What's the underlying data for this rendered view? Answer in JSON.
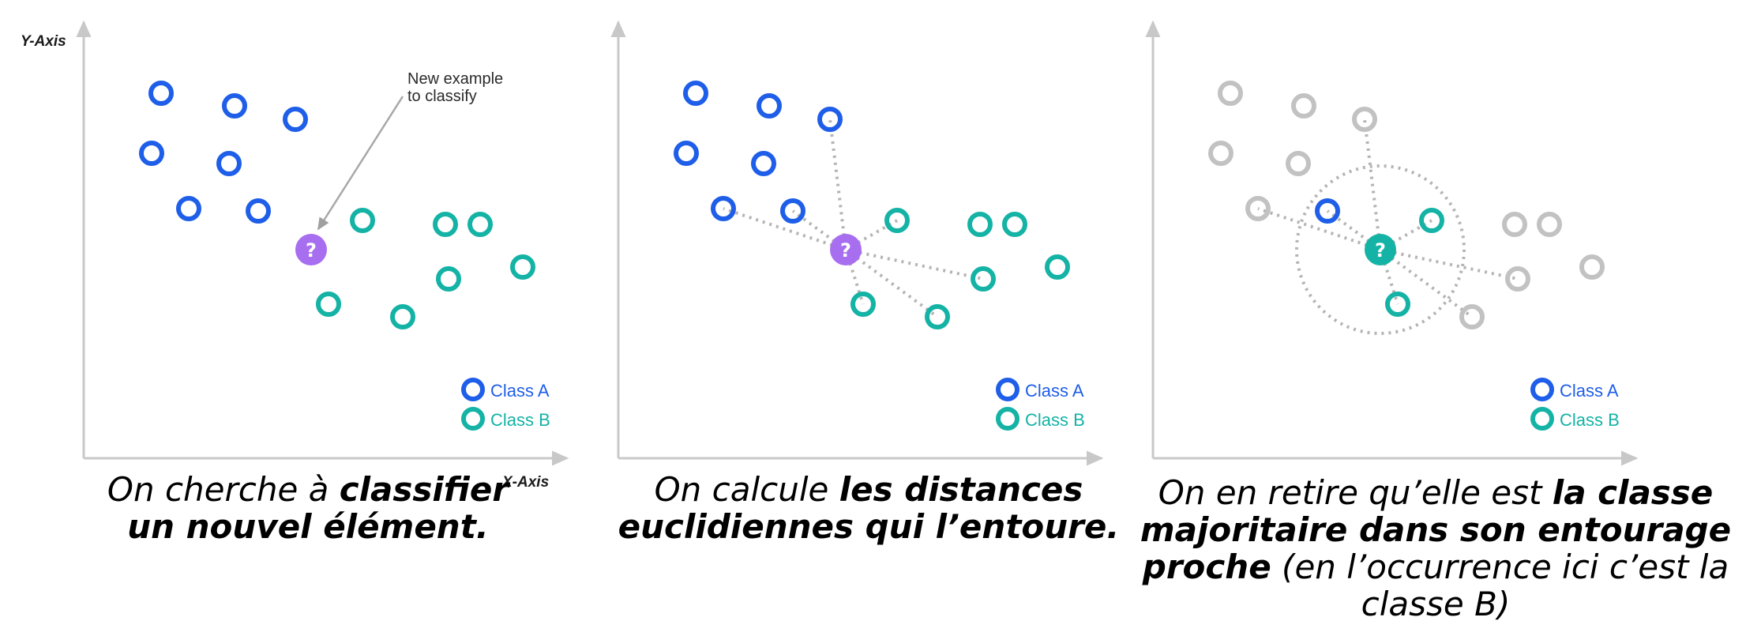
{
  "colors": {
    "class_a": "#1e5ee8",
    "class_b": "#14b3a5",
    "query_unknown": "#a86ef0",
    "query_classified": "#14b3a5",
    "faded": "#c2c2c2",
    "axis": "#c8c8c8",
    "dotted": "#b4b4b4"
  },
  "panel1": {
    "y_axis_label": "Y-Axis",
    "x_axis_label": "X-Axis",
    "annotation_line1": "New example",
    "annotation_line2": "to classify",
    "query_symbol": "?",
    "legend_a": "Class A",
    "legend_b": "Class B"
  },
  "panel2": {
    "query_symbol": "?",
    "legend_a": "Class A",
    "legend_b": "Class B"
  },
  "panel3": {
    "query_symbol": "?",
    "legend_a": "Class A",
    "legend_b": "Class B"
  },
  "captions": {
    "c1_pre": "On cherche à ",
    "c1_bold1": "classifier",
    "c1_bold2": "un nouvel élément.",
    "c2_pre": "On calcule ",
    "c2_bold1": "les distances",
    "c2_bold2": "euclidiennes qui l’entoure.",
    "c3_pre": "On en retire qu’elle est ",
    "c3_bold1": "la classe",
    "c3_bold2": "majoritaire dans son entourage",
    "c3_bold3": "proche",
    "c3_rest1": " (en l’occurrence ici c’est la",
    "c3_rest2": "classe B)"
  }
}
